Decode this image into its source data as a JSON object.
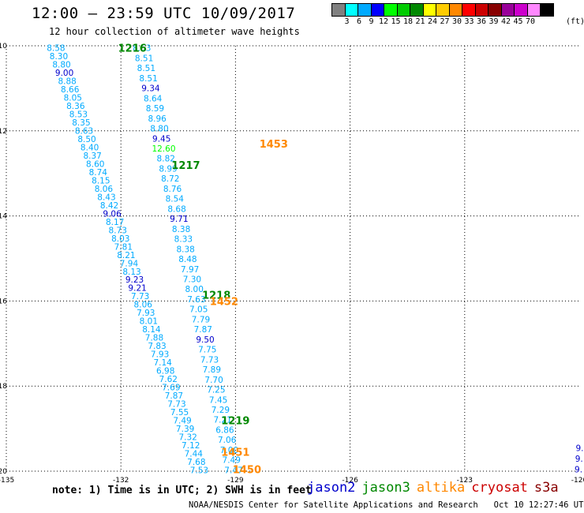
{
  "header": {
    "title": "12:00 — 23:59 UTC 10/09/2017",
    "subtitle": "12 hour collection of altimeter wave heights"
  },
  "colorbar": {
    "colors": [
      "#808080",
      "#00ffff",
      "#00aaff",
      "#0000ff",
      "#00ff00",
      "#00cc00",
      "#008800",
      "#ffff00",
      "#ffcc00",
      "#ff8800",
      "#ff0000",
      "#cc0000",
      "#880000",
      "#990099",
      "#cc00cc",
      "#ff88ff",
      "#000000"
    ],
    "ticks": [
      "3",
      "6",
      "9",
      "12",
      "15",
      "18",
      "21",
      "24",
      "27",
      "30",
      "33",
      "36",
      "39",
      "42",
      "45",
      "70"
    ],
    "unit": "(ft)"
  },
  "map": {
    "lon_labels": [
      "-135",
      "-132",
      "-129",
      "-126",
      "-123",
      "-120"
    ],
    "lat_labels": [
      "10",
      "12",
      "14",
      "16",
      "18",
      "20"
    ],
    "orbit_times": [
      {
        "label": "1216",
        "color": "green",
        "lon": -131.7,
        "lat": 10.05
      },
      {
        "label": "1453",
        "color": "orange",
        "lon": -128.0,
        "lat": 12.3
      },
      {
        "label": "1217",
        "color": "green",
        "lon": -130.3,
        "lat": 12.8
      },
      {
        "label": "1218",
        "color": "green",
        "lon": -129.5,
        "lat": 15.85
      },
      {
        "label": "1452",
        "color": "orange",
        "lon": -129.3,
        "lat": 16.0
      },
      {
        "label": "1219",
        "color": "green",
        "lon": -129.0,
        "lat": 18.8
      },
      {
        "label": "1451",
        "color": "orange",
        "lon": -129.0,
        "lat": 19.55
      },
      {
        "label": "1450",
        "color": "orange",
        "lon": -128.7,
        "lat": 19.95
      }
    ],
    "tracks": [
      {
        "satellite": "jason3",
        "lon_start": -133.7,
        "lat_start": 10.05,
        "lon_end": -129.95,
        "lat_end": 19.97,
        "values": [
          "8.58",
          "8.30",
          "8.80",
          "9.00",
          "8.88",
          "8.66",
          "8.05",
          "8.36",
          "8.53",
          "8.35",
          "8.63",
          "8.50",
          "8.40",
          "8.37",
          "8.60",
          "8.74",
          "8.15",
          "8.06",
          "8.43",
          "8.42",
          "9.06",
          "8.17",
          "8.73",
          "8.03",
          "7.81",
          "8.21",
          "7.94",
          "8.13",
          "9.23",
          "9.21",
          "7.73",
          "8.06",
          "7.93",
          "8.01",
          "8.14",
          "7.88",
          "7.83",
          "7.93",
          "7.14",
          "6.98",
          "7.62",
          "7.69",
          "7.87",
          "7.73",
          "7.55",
          "7.49",
          "7.39",
          "7.32",
          "7.12",
          "7.44",
          "7.68",
          "7.53"
        ]
      },
      {
        "satellite": "jason2",
        "lon_start": -131.45,
        "lat_start": 10.05,
        "lon_end": -129.05,
        "lat_end": 19.97,
        "values": [
          "8.53",
          "8.51",
          "8.51",
          "8.51",
          "9.34",
          "8.64",
          "8.59",
          "8.96",
          "8.80",
          "9.45",
          "12.60",
          "8.82",
          "8.99",
          "8.72",
          "8.76",
          "8.54",
          "8.68",
          "9.71",
          "8.38",
          "8.33",
          "8.38",
          "8.48",
          "7.97",
          "7.30",
          "8.00",
          "7.63",
          "7.05",
          "7.79",
          "7.87",
          "9.50",
          "7.75",
          "7.73",
          "7.89",
          "7.70",
          "7.25",
          "7.45",
          "7.29",
          "7.21",
          "6.86",
          "7.06",
          "7.00",
          "7.49",
          "7.47"
        ]
      },
      {
        "satellite": "jason2",
        "lon_start": -119.99,
        "lat_start": 19.45,
        "lon_end": -120.02,
        "lat_end": 19.95,
        "values": [
          "9.",
          "9.",
          "9."
        ]
      }
    ]
  },
  "note": "note: 1) Time is in UTC; 2) SWH is in feet",
  "legend": [
    {
      "label": "jason2",
      "color": "#0000cc"
    },
    {
      "label": "jason3",
      "color": "#008800"
    },
    {
      "label": "altika",
      "color": "#ff8800"
    },
    {
      "label": "cryosat",
      "color": "#cc0000"
    },
    {
      "label": "s3a",
      "color": "#880000"
    }
  ],
  "footer": {
    "credit": "NOAA/NESDIS Center for Satellite Applications and Research",
    "timestamp": "Oct 10 12:27:46 UTC 2017"
  }
}
